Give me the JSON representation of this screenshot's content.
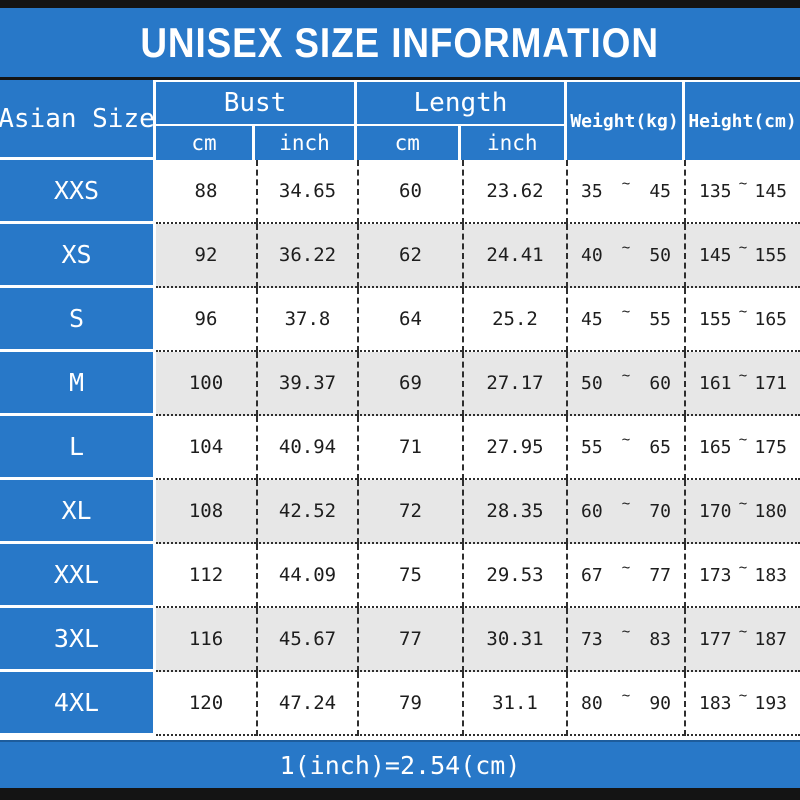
{
  "title": "UNISEX SIZE INFORMATION",
  "footer_note": "1(inch)=2.54(cm)",
  "tilde": "~",
  "colors": {
    "accent_blue": "#2878c8",
    "row_alt_gray": "#e7e7e7",
    "edge_bar_black": "#141414"
  },
  "header": {
    "asian_size": "Asian Size",
    "bust": "Bust",
    "length": "Length",
    "cm": "cm",
    "inch": "inch",
    "weight": "Weight(kg)",
    "height": "Height(cm)"
  },
  "rows": [
    {
      "size": "XXS",
      "bust_cm": "88",
      "bust_inch": "34.65",
      "length_cm": "60",
      "length_inch": "23.62",
      "weight_min": "35",
      "weight_max": "45",
      "height_min": "135",
      "height_max": "145"
    },
    {
      "size": "XS",
      "bust_cm": "92",
      "bust_inch": "36.22",
      "length_cm": "62",
      "length_inch": "24.41",
      "weight_min": "40",
      "weight_max": "50",
      "height_min": "145",
      "height_max": "155"
    },
    {
      "size": "S",
      "bust_cm": "96",
      "bust_inch": "37.8",
      "length_cm": "64",
      "length_inch": "25.2",
      "weight_min": "45",
      "weight_max": "55",
      "height_min": "155",
      "height_max": "165"
    },
    {
      "size": "M",
      "bust_cm": "100",
      "bust_inch": "39.37",
      "length_cm": "69",
      "length_inch": "27.17",
      "weight_min": "50",
      "weight_max": "60",
      "height_min": "161",
      "height_max": "171"
    },
    {
      "size": "L",
      "bust_cm": "104",
      "bust_inch": "40.94",
      "length_cm": "71",
      "length_inch": "27.95",
      "weight_min": "55",
      "weight_max": "65",
      "height_min": "165",
      "height_max": "175"
    },
    {
      "size": "XL",
      "bust_cm": "108",
      "bust_inch": "42.52",
      "length_cm": "72",
      "length_inch": "28.35",
      "weight_min": "60",
      "weight_max": "70",
      "height_min": "170",
      "height_max": "180"
    },
    {
      "size": "XXL",
      "bust_cm": "112",
      "bust_inch": "44.09",
      "length_cm": "75",
      "length_inch": "29.53",
      "weight_min": "67",
      "weight_max": "77",
      "height_min": "173",
      "height_max": "183"
    },
    {
      "size": "3XL",
      "bust_cm": "116",
      "bust_inch": "45.67",
      "length_cm": "77",
      "length_inch": "30.31",
      "weight_min": "73",
      "weight_max": "83",
      "height_min": "177",
      "height_max": "187"
    },
    {
      "size": "4XL",
      "bust_cm": "120",
      "bust_inch": "47.24",
      "length_cm": "79",
      "length_inch": "31.1",
      "weight_min": "80",
      "weight_max": "90",
      "height_min": "183",
      "height_max": "193"
    }
  ]
}
